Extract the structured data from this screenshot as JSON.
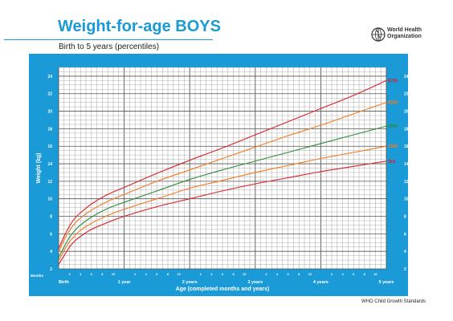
{
  "header": {
    "title": "Weight-for-age BOYS",
    "subtitle": "Birth to 5 years (percentiles)",
    "logo_line1": "World Health",
    "logo_line2": "Organization",
    "logo_icon": "globe-emblem-icon"
  },
  "footer": "WHO Child Growth Standards",
  "colors": {
    "frame": "#1a9ad6",
    "grid": "#9a9a9a",
    "title": "#1a9ad6",
    "p3": "#d92027",
    "p15": "#f4791f",
    "p50": "#2e8b3c",
    "p85": "#f4791f",
    "p97": "#d92027"
  },
  "chart_data": {
    "type": "line",
    "xlabel": "Age (completed months and years)",
    "ylabel": "Weight (kg)",
    "xlim": [
      0,
      60
    ],
    "ylim": [
      2,
      25
    ],
    "x_unit_label": "Months",
    "x_ticks": [
      {
        "m": 0,
        "label": "Birth"
      },
      {
        "m": 2,
        "label": "2"
      },
      {
        "m": 4,
        "label": "4"
      },
      {
        "m": 6,
        "label": "6"
      },
      {
        "m": 8,
        "label": "8"
      },
      {
        "m": 10,
        "label": "10"
      },
      {
        "m": 12,
        "label": "1 year"
      },
      {
        "m": 14,
        "label": "2"
      },
      {
        "m": 16,
        "label": "4"
      },
      {
        "m": 18,
        "label": "6"
      },
      {
        "m": 20,
        "label": "8"
      },
      {
        "m": 22,
        "label": "10"
      },
      {
        "m": 24,
        "label": "2 years"
      },
      {
        "m": 26,
        "label": "2"
      },
      {
        "m": 28,
        "label": "4"
      },
      {
        "m": 30,
        "label": "6"
      },
      {
        "m": 32,
        "label": "8"
      },
      {
        "m": 34,
        "label": "10"
      },
      {
        "m": 36,
        "label": "3 years"
      },
      {
        "m": 38,
        "label": "2"
      },
      {
        "m": 40,
        "label": "4"
      },
      {
        "m": 42,
        "label": "6"
      },
      {
        "m": 44,
        "label": "8"
      },
      {
        "m": 46,
        "label": "10"
      },
      {
        "m": 48,
        "label": "4 years"
      },
      {
        "m": 50,
        "label": "2"
      },
      {
        "m": 52,
        "label": "4"
      },
      {
        "m": 54,
        "label": "6"
      },
      {
        "m": 56,
        "label": "8"
      },
      {
        "m": 58,
        "label": "10"
      },
      {
        "m": 60,
        "label": "5 years"
      }
    ],
    "y_ticks": [
      2,
      4,
      6,
      8,
      10,
      12,
      14,
      16,
      18,
      20,
      22,
      24
    ],
    "grid": true,
    "x": [
      0,
      1,
      2,
      3,
      4,
      6,
      9,
      12,
      18,
      24,
      30,
      36,
      42,
      48,
      54,
      60
    ],
    "series": [
      {
        "name": "97th",
        "color_key": "p97",
        "values": [
          4.3,
          5.7,
          6.9,
          7.8,
          8.4,
          9.4,
          10.5,
          11.3,
          12.9,
          14.4,
          15.8,
          17.3,
          18.8,
          20.3,
          21.8,
          23.5
        ]
      },
      {
        "name": "85th",
        "color_key": "p85",
        "values": [
          3.9,
          5.3,
          6.4,
          7.2,
          7.8,
          8.7,
          9.7,
          10.5,
          12.0,
          13.3,
          14.6,
          15.9,
          17.2,
          18.4,
          19.7,
          21.0
        ]
      },
      {
        "name": "50th",
        "color_key": "p50",
        "values": [
          3.3,
          4.5,
          5.6,
          6.4,
          7.0,
          7.9,
          8.9,
          9.6,
          10.9,
          12.2,
          13.3,
          14.3,
          15.3,
          16.3,
          17.3,
          18.3
        ]
      },
      {
        "name": "15th",
        "color_key": "p15",
        "values": [
          2.9,
          4.1,
          5.1,
          5.8,
          6.4,
          7.2,
          8.1,
          8.8,
          10.0,
          11.2,
          12.1,
          13.0,
          13.8,
          14.6,
          15.3,
          16.0
        ]
      },
      {
        "name": "3rd",
        "color_key": "p3",
        "values": [
          2.5,
          3.5,
          4.5,
          5.2,
          5.7,
          6.5,
          7.3,
          8.0,
          9.1,
          10.0,
          10.9,
          11.7,
          12.4,
          13.1,
          13.7,
          14.3
        ]
      }
    ]
  }
}
